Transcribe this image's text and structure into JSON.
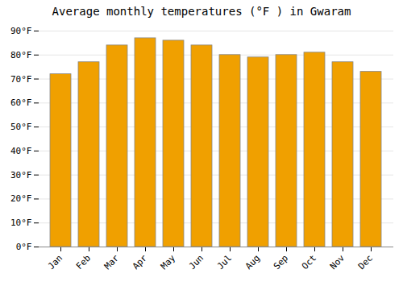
{
  "chart_data": {
    "type": "bar",
    "title": "Average monthly temperatures (°F ) in Gwaram",
    "categories": [
      "Jan",
      "Feb",
      "Mar",
      "Apr",
      "May",
      "Jun",
      "Jul",
      "Aug",
      "Sep",
      "Oct",
      "Nov",
      "Dec"
    ],
    "values": [
      72,
      77,
      84,
      87,
      86,
      84,
      80,
      79,
      80,
      81,
      77,
      73
    ],
    "color": "#F0A000",
    "ylim": [
      0,
      90
    ],
    "yticks": [
      {
        "value": 0,
        "label": "0°F"
      },
      {
        "value": 10,
        "label": "10°F"
      },
      {
        "value": 20,
        "label": "20°F"
      },
      {
        "value": 30,
        "label": "30°F"
      },
      {
        "value": 40,
        "label": "40°F"
      },
      {
        "value": 50,
        "label": "50°F"
      },
      {
        "value": 60,
        "label": "60°F"
      },
      {
        "value": 70,
        "label": "70°F"
      },
      {
        "value": 80,
        "label": "80°F"
      },
      {
        "value": 90,
        "label": "90°F"
      }
    ],
    "grid": true
  }
}
